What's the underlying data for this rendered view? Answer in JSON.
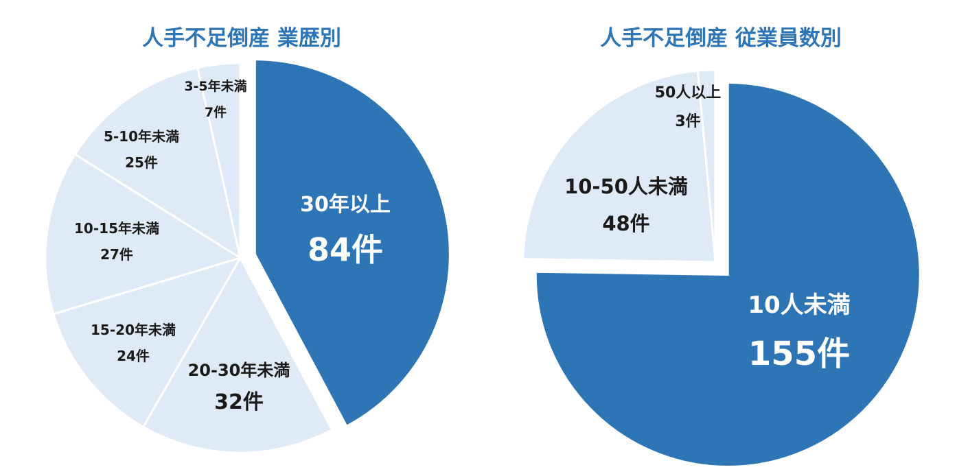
{
  "chart_data": [
    {
      "type": "pie",
      "title": "人手不足倒産  業歴別",
      "colors": {
        "highlight": "#2e75b6",
        "base": "#deebf7",
        "border": "#ffffff",
        "text_dark": "#1a1a1a",
        "text_light": "#ffffff",
        "title": "#2e75b6"
      },
      "slices": [
        {
          "category": "30年以上",
          "value": 84,
          "value_label": "84件",
          "highlight": true
        },
        {
          "category": "20-30年未満",
          "value": 32,
          "value_label": "32件",
          "highlight": false
        },
        {
          "category": "15-20年未満",
          "value": 24,
          "value_label": "24件",
          "highlight": false
        },
        {
          "category": "10-15年未満",
          "value": 27,
          "value_label": "27件",
          "highlight": false
        },
        {
          "category": "5-10年未満",
          "value": 25,
          "value_label": "25件",
          "highlight": false
        },
        {
          "category": "3-5年未満",
          "value": 7,
          "value_label": "7件",
          "highlight": false
        }
      ]
    },
    {
      "type": "pie",
      "title": "人手不足倒産  従業員数別",
      "colors": {
        "highlight": "#2e75b6",
        "base": "#deebf7",
        "border": "#ffffff",
        "text_dark": "#1a1a1a",
        "text_light": "#ffffff",
        "title": "#2e75b6"
      },
      "slices": [
        {
          "category": "10人未満",
          "value": 155,
          "value_label": "155件",
          "highlight": true
        },
        {
          "category": "10-50人未満",
          "value": 48,
          "value_label": "48件",
          "highlight": false
        },
        {
          "category": "50人以上",
          "value": 3,
          "value_label": "3件",
          "highlight": false
        }
      ]
    }
  ]
}
